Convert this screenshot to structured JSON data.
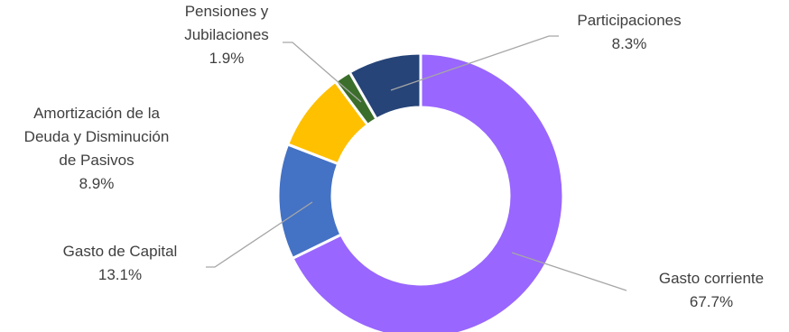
{
  "chart_data": {
    "type": "pie",
    "donut": true,
    "start_angle_deg": 0,
    "direction": "clockwise",
    "legend": "none",
    "slices": [
      {
        "name": "Gasto corriente",
        "value": 67.7,
        "label": "67.7%",
        "color": "#9966ff",
        "label_lines": [
          "Gasto corriente",
          "67.7%"
        ]
      },
      {
        "name": "Gasto de Capital",
        "value": 13.1,
        "label": "13.1%",
        "color": "#4472c4",
        "label_lines": [
          "Gasto de Capital",
          "13.1%"
        ]
      },
      {
        "name": "Amortización de la Deuda y Disminución de Pasivos",
        "value": 8.9,
        "label": "8.9%",
        "color": "#ffc000",
        "label_lines": [
          "Amortización de la",
          "Deuda y Disminución",
          "de Pasivos",
          "8.9%"
        ]
      },
      {
        "name": "Pensiones y Jubilaciones",
        "value": 1.9,
        "label": "1.9%",
        "color": "#3b6e2a",
        "label_lines": [
          "Pensiones y",
          "Jubilaciones",
          "1.9%"
        ]
      },
      {
        "name": "Participaciones",
        "value": 8.3,
        "label": "8.3%",
        "color": "#264478",
        "label_lines": [
          "Participaciones",
          "8.3%"
        ]
      }
    ]
  }
}
